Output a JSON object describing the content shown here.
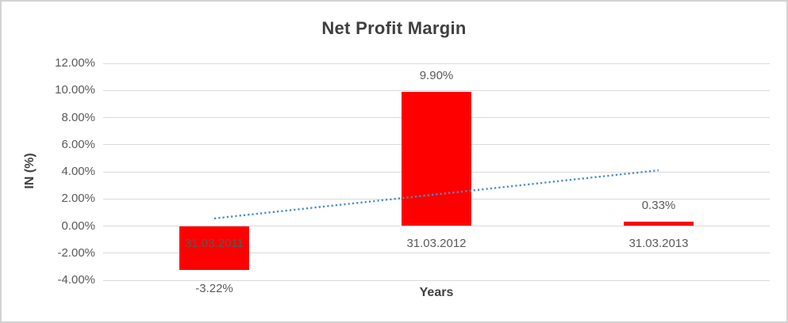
{
  "chart_data": {
    "type": "bar",
    "title": "Net Profit Margin",
    "xlabel": "Years",
    "ylabel": "IN (%)",
    "categories": [
      "31.03.2011",
      "31.03.2012",
      "31.03.2013"
    ],
    "values": [
      -3.22,
      9.9,
      0.33
    ],
    "value_labels": [
      "-3.22%",
      "9.90%",
      "0.33%"
    ],
    "ylim": [
      -4,
      12
    ],
    "ytick_step": 2,
    "ytick_labels": [
      "12.00%",
      "10.00%",
      "8.00%",
      "6.00%",
      "4.00%",
      "2.00%",
      "0.00%",
      "-2.00%",
      "-4.00%"
    ],
    "ytick_values": [
      12,
      10,
      8,
      6,
      4,
      2,
      0,
      -2,
      -4
    ],
    "grid": true,
    "legend": "none",
    "bar_color": "#ff0000",
    "gridline_color": "#d9d9d9",
    "trendline": {
      "type": "linear",
      "style": "dotted",
      "color": "#4e8bc8",
      "start_value": 0.56,
      "end_value": 4.11
    }
  }
}
